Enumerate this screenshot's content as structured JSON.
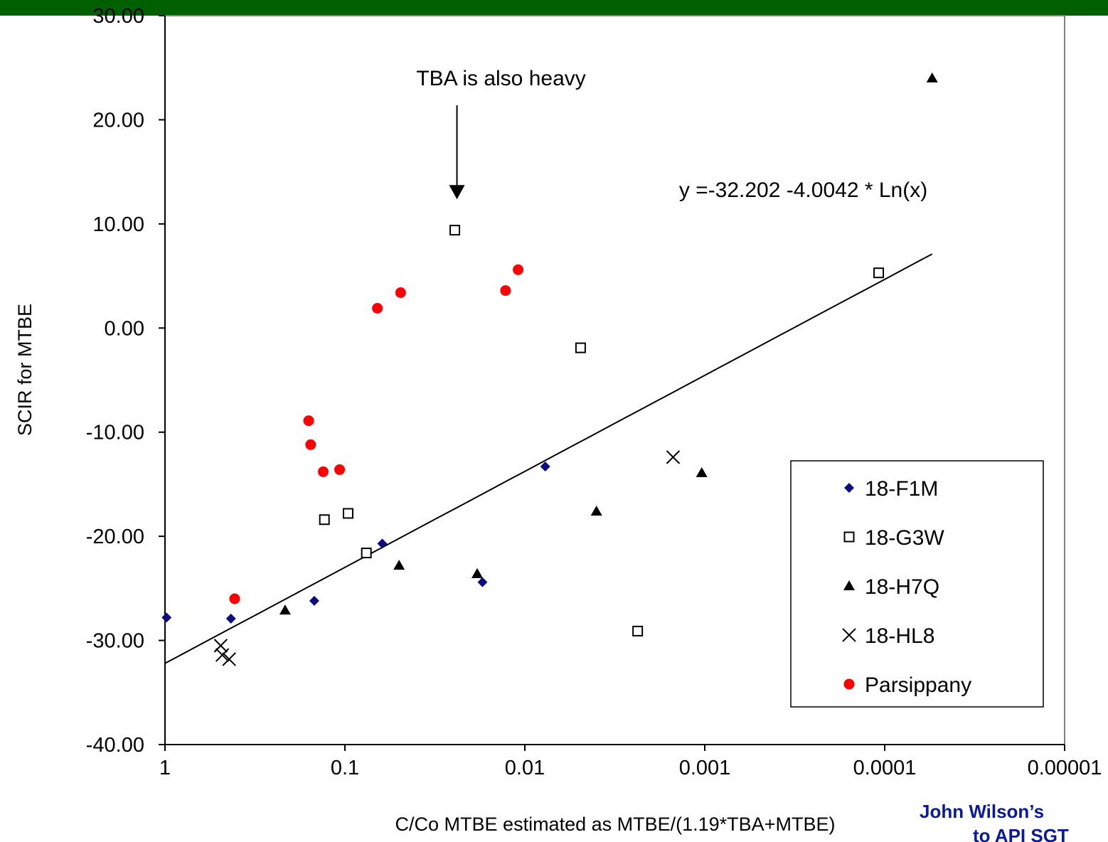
{
  "footer": {
    "line1": "John Wilson’s",
    "line2": "to API SGT"
  },
  "colors": {
    "header_bar": "#006000",
    "f1m": "#0d0d80",
    "parsippany": "#ff0000",
    "footer_text": "#0a1a9a"
  },
  "chart_data": {
    "type": "scatter",
    "title": "",
    "xlabel": "C/Co MTBE estimated as MTBE/(1.19*TBA+MTBE)",
    "ylabel": "SCIR for MTBE",
    "x_scale": "log",
    "x_reversed": true,
    "xlim": [
      1,
      1e-05
    ],
    "ylim": [
      -40,
      30
    ],
    "x_ticks": [
      1,
      0.1,
      0.01,
      0.001,
      0.0001,
      1e-05
    ],
    "x_tick_labels": [
      "1",
      "0.1",
      "0.01",
      "0.001",
      "0.0001",
      "0.00001"
    ],
    "y_ticks": [
      -40,
      -30,
      -20,
      -10,
      0,
      10,
      20,
      30
    ],
    "y_tick_labels": [
      "-40.00",
      "-30.00",
      "-20.00",
      "-10.00",
      "0.00",
      "10.00",
      "20.00",
      "30.00"
    ],
    "grid": false,
    "legend_position": "right",
    "series": [
      {
        "name": "18-F1M",
        "marker": "diamond",
        "color": "#0d0d80",
        "points": [
          [
            0.98,
            -27.8
          ],
          [
            0.43,
            -27.9
          ],
          [
            0.148,
            -26.2
          ],
          [
            0.062,
            -20.7
          ],
          [
            0.0172,
            -24.4
          ],
          [
            0.0077,
            -13.3
          ]
        ]
      },
      {
        "name": "18-G3W",
        "marker": "square",
        "color": "#000000",
        "points": [
          [
            0.13,
            -18.4
          ],
          [
            0.096,
            -17.8
          ],
          [
            0.076,
            -21.6
          ],
          [
            0.0245,
            9.4
          ],
          [
            0.0049,
            -1.9
          ],
          [
            0.00236,
            -29.1
          ],
          [
            0.000108,
            5.3
          ]
        ]
      },
      {
        "name": "18-H7Q",
        "marker": "triangle",
        "color": "#000000",
        "points": [
          [
            0.215,
            -27.1
          ],
          [
            0.05,
            -22.8
          ],
          [
            0.0184,
            -23.6
          ],
          [
            0.004,
            -17.6
          ],
          [
            0.00104,
            -13.9
          ],
          [
            5.45e-05,
            24.0
          ]
        ]
      },
      {
        "name": "18-HL8",
        "marker": "x",
        "color": "#000000",
        "points": [
          [
            0.49,
            -30.5
          ],
          [
            0.48,
            -31.4
          ],
          [
            0.44,
            -31.8
          ],
          [
            0.0015,
            -12.4
          ]
        ]
      },
      {
        "name": "Parsippany",
        "marker": "circle",
        "color": "#ff0000",
        "points": [
          [
            0.41,
            -26.0
          ],
          [
            0.159,
            -8.9
          ],
          [
            0.155,
            -11.2
          ],
          [
            0.132,
            -13.8
          ],
          [
            0.107,
            -13.6
          ],
          [
            0.066,
            1.9
          ],
          [
            0.049,
            3.4
          ],
          [
            0.0128,
            3.6
          ],
          [
            0.0109,
            5.6
          ]
        ]
      }
    ],
    "trendline": {
      "label": "y =-32.202  -4.0042 * Ln(x)",
      "a": -32.202,
      "b": -4.0042,
      "x_range": [
        1,
        5.45e-05
      ]
    },
    "annotations": [
      {
        "text": "TBA is also heavy",
        "x": 0.0245,
        "y_text": 23.3,
        "y_arrow_end": 12.5
      }
    ]
  }
}
